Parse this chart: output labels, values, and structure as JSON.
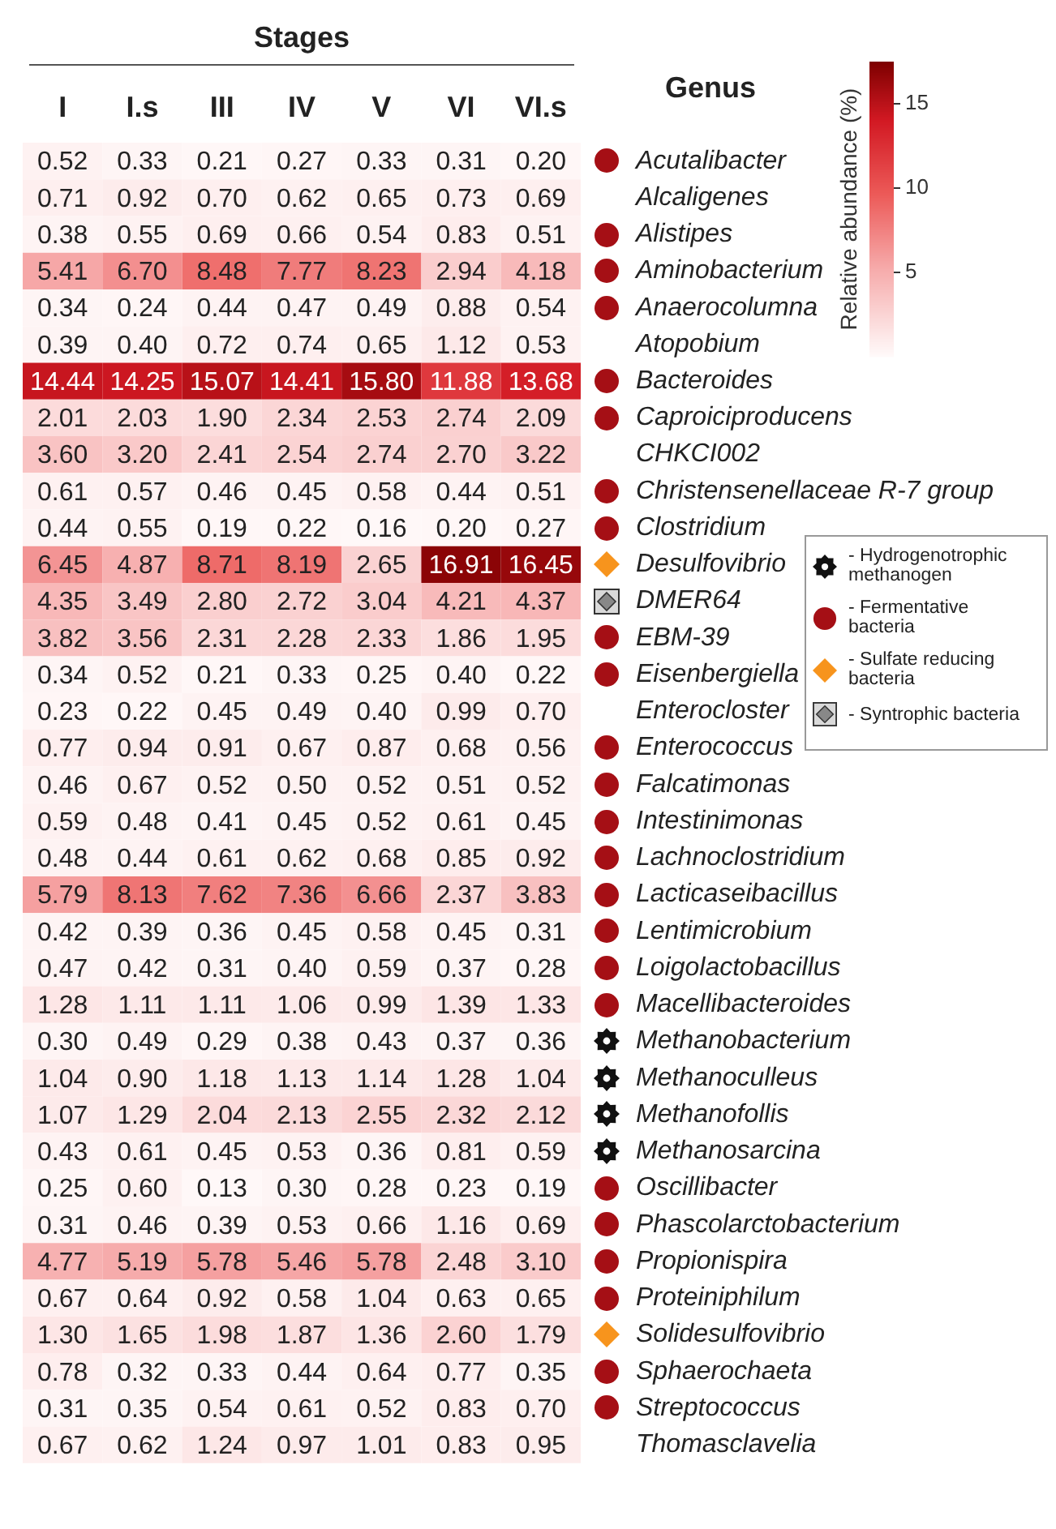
{
  "chart_data": {
    "type": "heatmap",
    "xlabel": "Stages",
    "ylabel": "Genus",
    "clabel": "Relative abundance (%)",
    "categories": [
      "I",
      "I.s",
      "III",
      "IV",
      "V",
      "VI",
      "VI.s"
    ],
    "y_categories": [
      "Acutalibacter",
      "Alcaligenes",
      "Alistipes",
      "Aminobacterium",
      "Anaerocolumna",
      "Atopobium",
      "Bacteroides",
      "Caproiciproducens",
      "CHKCI002",
      "Christensenellaceae R-7 group",
      "Clostridium",
      "Desulfovibrio",
      "DMER64",
      "EBM-39",
      "Eisenbergiella",
      "Enterocloster",
      "Enterococcus",
      "Falcatimonas",
      "Intestinimonas",
      "Lachnoclostridium",
      "Lacticaseibacillus",
      "Lentimicrobium",
      "Loigolactobacillus",
      "Macellibacteroides",
      "Methanobacterium",
      "Methanoculleus",
      "Methanofollis",
      "Methanosarcina",
      "Oscillibacter",
      "Phascolarctobacterium",
      "Propionispira",
      "Proteiniphilum",
      "Solidesulfovibrio",
      "Sphaerochaeta",
      "Streptococcus",
      "Thomasclavelia"
    ],
    "cells": [
      [
        0.52,
        0.33,
        0.21,
        0.27,
        0.33,
        0.31,
        0.2
      ],
      [
        0.71,
        0.92,
        0.7,
        0.62,
        0.65,
        0.73,
        0.69
      ],
      [
        0.38,
        0.55,
        0.69,
        0.66,
        0.54,
        0.83,
        0.51
      ],
      [
        5.41,
        6.7,
        8.48,
        7.77,
        8.23,
        2.94,
        4.18
      ],
      [
        0.34,
        0.24,
        0.44,
        0.47,
        0.49,
        0.88,
        0.54
      ],
      [
        0.39,
        0.4,
        0.72,
        0.74,
        0.65,
        1.12,
        0.53
      ],
      [
        14.44,
        14.25,
        15.07,
        14.41,
        15.8,
        11.88,
        13.68
      ],
      [
        2.01,
        2.03,
        1.9,
        2.34,
        2.53,
        2.74,
        2.09
      ],
      [
        3.6,
        3.2,
        2.41,
        2.54,
        2.74,
        2.7,
        3.22
      ],
      [
        0.61,
        0.57,
        0.46,
        0.45,
        0.58,
        0.44,
        0.51
      ],
      [
        0.44,
        0.55,
        0.19,
        0.22,
        0.16,
        0.2,
        0.27
      ],
      [
        6.45,
        4.87,
        8.71,
        8.19,
        2.65,
        16.91,
        16.45
      ],
      [
        4.35,
        3.49,
        2.8,
        2.72,
        3.04,
        4.21,
        4.37
      ],
      [
        3.82,
        3.56,
        2.31,
        2.28,
        2.33,
        1.86,
        1.95
      ],
      [
        0.34,
        0.52,
        0.21,
        0.33,
        0.25,
        0.4,
        0.22
      ],
      [
        0.23,
        0.22,
        0.45,
        0.49,
        0.4,
        0.99,
        0.7
      ],
      [
        0.77,
        0.94,
        0.91,
        0.67,
        0.87,
        0.68,
        0.56
      ],
      [
        0.46,
        0.67,
        0.52,
        0.5,
        0.52,
        0.51,
        0.52
      ],
      [
        0.59,
        0.48,
        0.41,
        0.45,
        0.52,
        0.61,
        0.45
      ],
      [
        0.48,
        0.44,
        0.61,
        0.62,
        0.68,
        0.85,
        0.92
      ],
      [
        5.79,
        8.13,
        7.62,
        7.36,
        6.66,
        2.37,
        3.83
      ],
      [
        0.42,
        0.39,
        0.36,
        0.45,
        0.58,
        0.45,
        0.31
      ],
      [
        0.47,
        0.42,
        0.31,
        0.4,
        0.59,
        0.37,
        0.28
      ],
      [
        1.28,
        1.11,
        1.11,
        1.06,
        0.99,
        1.39,
        1.33
      ],
      [
        0.3,
        0.49,
        0.29,
        0.38,
        0.43,
        0.37,
        0.36
      ],
      [
        1.04,
        0.9,
        1.18,
        1.13,
        1.14,
        1.28,
        1.04
      ],
      [
        1.07,
        1.29,
        2.04,
        2.13,
        2.55,
        2.32,
        2.12
      ],
      [
        0.43,
        0.61,
        0.45,
        0.53,
        0.36,
        0.81,
        0.59
      ],
      [
        0.25,
        0.6,
        0.13,
        0.3,
        0.28,
        0.23,
        0.19
      ],
      [
        0.31,
        0.46,
        0.39,
        0.53,
        0.66,
        1.16,
        0.69
      ],
      [
        4.77,
        5.19,
        5.78,
        5.46,
        5.78,
        2.48,
        3.1
      ],
      [
        0.67,
        0.64,
        0.92,
        0.58,
        1.04,
        0.63,
        0.65
      ],
      [
        1.3,
        1.65,
        1.98,
        1.87,
        1.36,
        2.6,
        1.79
      ],
      [
        0.78,
        0.32,
        0.33,
        0.44,
        0.64,
        0.77,
        0.35
      ],
      [
        0.31,
        0.35,
        0.54,
        0.61,
        0.52,
        0.83,
        0.7
      ],
      [
        0.67,
        0.62,
        1.24,
        0.97,
        1.01,
        0.83,
        0.95
      ]
    ],
    "cell_labels": [
      [
        "0.52",
        "0.33",
        "0.21",
        "0.27",
        "0.33",
        "0.31",
        "0.20"
      ],
      [
        "0.71",
        "0.92",
        "0.70",
        "0.62",
        "0.65",
        "0.73",
        "0.69"
      ],
      [
        "0.38",
        "0.55",
        "0.69",
        "0.66",
        "0.54",
        "0.83",
        "0.51"
      ],
      [
        "5.41",
        "6.70",
        "8.48",
        "7.77",
        "8.23",
        "2.94",
        "4.18"
      ],
      [
        "0.34",
        "0.24",
        "0.44",
        "0.47",
        "0.49",
        "0.88",
        "0.54"
      ],
      [
        "0.39",
        "0.40",
        "0.72",
        "0.74",
        "0.65",
        "1.12",
        "0.53"
      ],
      [
        "14.44",
        "14.25",
        "15.07",
        "14.41",
        "15.80",
        "11.88",
        "13.68"
      ],
      [
        "2.01",
        "2.03",
        "1.90",
        "2.34",
        "2.53",
        "2.74",
        "2.09"
      ],
      [
        "3.60",
        "3.20",
        "2.41",
        "2.54",
        "2.74",
        "2.70",
        "3.22"
      ],
      [
        "0.61",
        "0.57",
        "0.46",
        "0.45",
        "0.58",
        "0.44",
        "0.51"
      ],
      [
        "0.44",
        "0.55",
        "0.19",
        "0.22",
        "0.16",
        "0.20",
        "0.27"
      ],
      [
        "6.45",
        "4.87",
        "8.71",
        "8.19",
        "2.65",
        "16.91",
        "16.45"
      ],
      [
        "4.35",
        "3.49",
        "2.80",
        "2.72",
        "3.04",
        "4.21",
        "4.37"
      ],
      [
        "3.82",
        "3.56",
        "2.31",
        "2.28",
        "2.33",
        "1.86",
        "1.95"
      ],
      [
        "0.34",
        "0.52",
        "0.21",
        "0.33",
        "0.25",
        "0.40",
        "0.22"
      ],
      [
        "0.23",
        "0.22",
        "0.45",
        "0.49",
        "0.40",
        "0.99",
        "0.70"
      ],
      [
        "0.77",
        "0.94",
        "0.91",
        "0.67",
        "0.87",
        "0.68",
        "0.56"
      ],
      [
        "0.46",
        "0.67",
        "0.52",
        "0.50",
        "0.52",
        "0.51",
        "0.52"
      ],
      [
        "0.59",
        "0.48",
        "0.41",
        "0.45",
        "0.52",
        "0.61",
        "0.45"
      ],
      [
        "0.48",
        "0.44",
        "0.61",
        "0.62",
        "0.68",
        "0.85",
        "0.92"
      ],
      [
        "5.79",
        "8.13",
        "7.62",
        "7.36",
        "6.66",
        "2.37",
        "3.83"
      ],
      [
        "0.42",
        "0.39",
        "0.36",
        "0.45",
        "0.58",
        "0.45",
        "0.31"
      ],
      [
        "0.47",
        "0.42",
        "0.31",
        "0.40",
        "0.59",
        "0.37",
        "0.28"
      ],
      [
        "1.28",
        "1.11",
        "1.11",
        "1.06",
        "0.99",
        "1.39",
        "1.33"
      ],
      [
        "0.30",
        "0.49",
        "0.29",
        "0.38",
        "0.43",
        "0.37",
        "0.36"
      ],
      [
        "1.04",
        "0.90",
        "1.18",
        "1.13",
        "1.14",
        "1.28",
        "1.04"
      ],
      [
        "1.07",
        "1.29",
        "2.04",
        "2.13",
        "2.55",
        "2.32",
        "2.12"
      ],
      [
        "0.43",
        "0.61",
        "0.45",
        "0.53",
        "0.36",
        "0.81",
        "0.59"
      ],
      [
        "0.25",
        "0.60",
        "0.13",
        "0.30",
        "0.28",
        "0.23",
        "0.19"
      ],
      [
        "0.31",
        "0.46",
        "0.39",
        "0.53",
        "0.66",
        "1.16",
        "0.69"
      ],
      [
        "4.77",
        "5.19",
        "5.78",
        "5.46",
        "5.78",
        "2.48",
        "3.10"
      ],
      [
        "0.67",
        "0.64",
        "0.92",
        "0.58",
        "1.04",
        "0.63",
        "0.65"
      ],
      [
        "1.30",
        "1.65",
        "1.98",
        "1.87",
        "1.36",
        "2.60",
        "1.79"
      ],
      [
        "0.78",
        "0.32",
        "0.33",
        "0.44",
        "0.64",
        "0.77",
        "0.35"
      ],
      [
        "0.31",
        "0.35",
        "0.54",
        "0.61",
        "0.52",
        "0.83",
        "0.70"
      ],
      [
        "0.67",
        "0.62",
        "1.24",
        "0.97",
        "1.01",
        "0.83",
        "0.95"
      ]
    ],
    "data_labels": true,
    "clim": [
      0,
      17.5
    ],
    "cticks": [
      5,
      10,
      15
    ],
    "annotations": [
      "- Hydrogenotrophic methanogen",
      "- Fermentative bacteria",
      "- Sulfate reducing bacteria",
      "- Syntrophic bacteria"
    ]
  }
}
